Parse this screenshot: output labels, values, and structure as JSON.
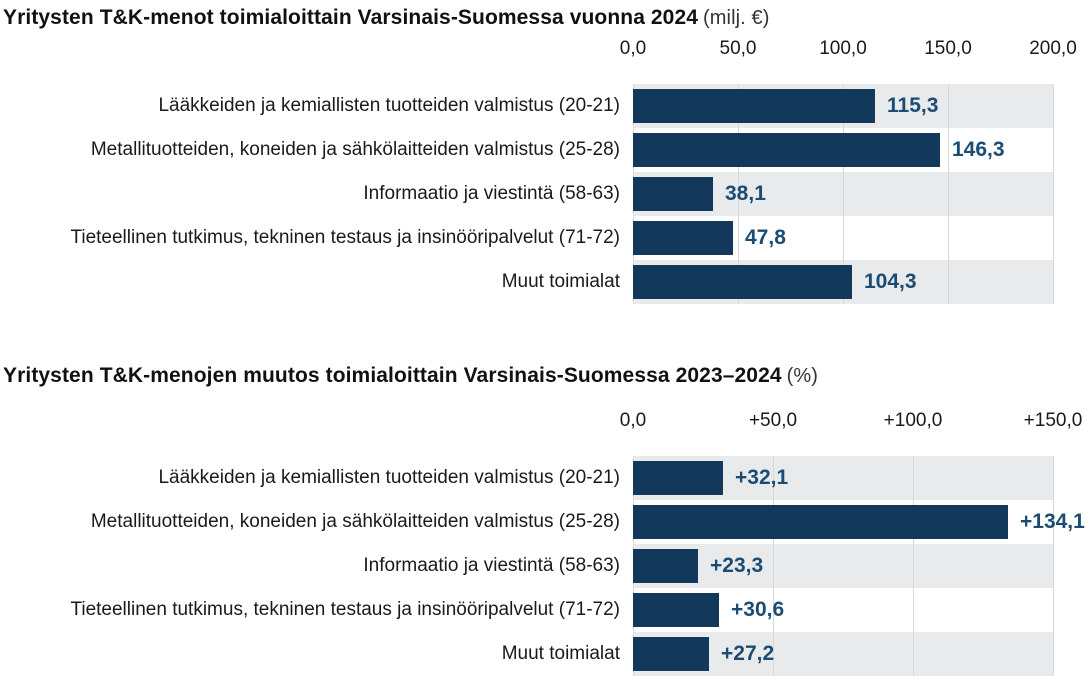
{
  "colors": {
    "bar": "#12395c",
    "value_label": "#1c4b73",
    "band_odd": "#e8eaeb",
    "band_even": "#ffffff",
    "gridline": "#d6d9da",
    "title_text": "#111111",
    "unit_text": "#333333",
    "label_text": "#1a1a1a"
  },
  "chart_data": [
    {
      "type": "bar",
      "orientation": "horizontal",
      "title": "Yritysten T&K-menot toimialoittain Varsinais-Suomessa vuonna 2024",
      "unit": "(milj. €)",
      "categories": [
        "Lääkkeiden ja kemiallisten tuotteiden valmistus (20-21)",
        "Metallituotteiden, koneiden ja sähkölaitteiden valmistus (25-28)",
        "Informaatio ja viestintä (58-63)",
        "Tieteellinen tutkimus, tekninen testaus ja insinööripalvelut (71-72)",
        "Muut toimialat"
      ],
      "values": [
        115.3,
        146.3,
        38.1,
        47.8,
        104.3
      ],
      "value_labels": [
        "115,3",
        "146,3",
        "38,1",
        "47,8",
        "104,3"
      ],
      "xlim": [
        0,
        200
      ],
      "xticks": [
        0,
        50,
        100,
        150,
        200
      ],
      "xtick_labels": [
        "0,0",
        "50,0",
        "100,0",
        "150,0",
        "200,0"
      ],
      "grid": "vertical",
      "legend": "none"
    },
    {
      "type": "bar",
      "orientation": "horizontal",
      "title": "Yritysten T&K-menojen muutos toimialoittain Varsinais-Suomessa 2023–2024",
      "unit": "(%)",
      "categories": [
        "Lääkkeiden ja kemiallisten tuotteiden valmistus (20-21)",
        "Metallituotteiden, koneiden ja sähkölaitteiden valmistus (25-28)",
        "Informaatio ja viestintä (58-63)",
        "Tieteellinen tutkimus, tekninen testaus ja insinööripalvelut (71-72)",
        "Muut toimialat"
      ],
      "values": [
        32.1,
        134.1,
        23.3,
        30.6,
        27.2
      ],
      "value_labels": [
        "+32,1",
        "+134,1",
        "+23,3",
        "+30,6",
        "+27,2"
      ],
      "xlim": [
        0,
        150
      ],
      "xticks": [
        0,
        50,
        100,
        150
      ],
      "xtick_labels": [
        "0,0",
        "+50,0",
        "+100,0",
        "+150,0"
      ],
      "grid": "vertical",
      "legend": "none"
    }
  ]
}
